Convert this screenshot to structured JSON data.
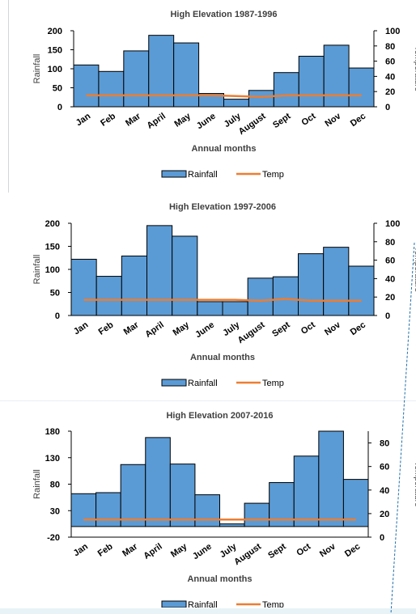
{
  "chart_data": [
    {
      "type": "bar",
      "title": "High Elevation 1987-1996",
      "xlabel": "Annual months",
      "ylabel": "Rainfall",
      "y2label": "Temperature",
      "categories": [
        "Jan",
        "Feb",
        "Mar",
        "April",
        "May",
        "June",
        "July",
        "August",
        "Sept",
        "Oct",
        "Nov",
        "Dec"
      ],
      "ylim": [
        0,
        200
      ],
      "yticks": [
        0,
        50,
        100,
        150,
        200
      ],
      "y2lim": [
        0,
        100
      ],
      "y2ticks": [
        0,
        20,
        40,
        60,
        80,
        100
      ],
      "series": [
        {
          "name": "Rainfall",
          "type": "bar",
          "axis": "left",
          "color": "#5b9bd5",
          "values": [
            110,
            93,
            147,
            188,
            168,
            35,
            20,
            43,
            90,
            133,
            162,
            102
          ]
        },
        {
          "name": "Temp",
          "type": "line",
          "axis": "right",
          "color": "#ed7d31",
          "values": [
            15,
            15,
            15,
            15,
            15,
            15,
            14,
            13,
            15,
            15,
            15,
            15
          ]
        }
      ],
      "legend": "bottom"
    },
    {
      "type": "bar",
      "title": "High Elevation 1997-2006",
      "xlabel": "Annual months",
      "ylabel": "Rainfall",
      "y2label": "Temperature",
      "categories": [
        "Jan",
        "Feb",
        "Mar",
        "April",
        "May",
        "June",
        "July",
        "August",
        "Sept",
        "Oct",
        "Nov",
        "Dec"
      ],
      "ylim": [
        0,
        200
      ],
      "yticks": [
        0,
        50,
        100,
        150,
        200
      ],
      "y2lim": [
        0,
        100
      ],
      "y2ticks": [
        0,
        20,
        40,
        60,
        80,
        100
      ],
      "series": [
        {
          "name": "Rainfall",
          "type": "bar",
          "axis": "left",
          "color": "#5b9bd5",
          "values": [
            122,
            85,
            129,
            195,
            172,
            30,
            30,
            81,
            84,
            134,
            148,
            107
          ]
        },
        {
          "name": "Temp",
          "type": "line",
          "axis": "right",
          "color": "#ed7d31",
          "values": [
            17,
            17,
            17,
            17,
            17,
            17,
            17,
            16,
            18,
            16,
            16,
            16
          ]
        }
      ],
      "legend": "bottom"
    },
    {
      "type": "bar",
      "title": "High Elevation 2007-2016",
      "xlabel": "Annual months",
      "ylabel": "Rainfall",
      "y2label": "Temperature",
      "categories": [
        "Jan",
        "Feb",
        "Mar",
        "April",
        "May",
        "June",
        "July",
        "August",
        "Sept",
        "Oct",
        "Nov",
        "Dec"
      ],
      "ylim": [
        -20,
        180
      ],
      "yticks": [
        -20,
        30,
        80,
        130,
        180
      ],
      "y2lim": [
        0,
        90
      ],
      "y2ticks": [
        0,
        20,
        40,
        60,
        80
      ],
      "series": [
        {
          "name": "Rainfall",
          "type": "bar",
          "axis": "left",
          "color": "#5b9bd5",
          "values": [
            62,
            64,
            117,
            168,
            118,
            60,
            5,
            44,
            83,
            133,
            180,
            89
          ]
        },
        {
          "name": "Temp",
          "type": "line",
          "axis": "right",
          "color": "#ed7d31",
          "values": [
            15,
            15,
            15,
            15,
            15,
            15,
            15,
            15,
            15,
            15,
            15,
            15
          ]
        }
      ],
      "legend": "bottom"
    }
  ]
}
